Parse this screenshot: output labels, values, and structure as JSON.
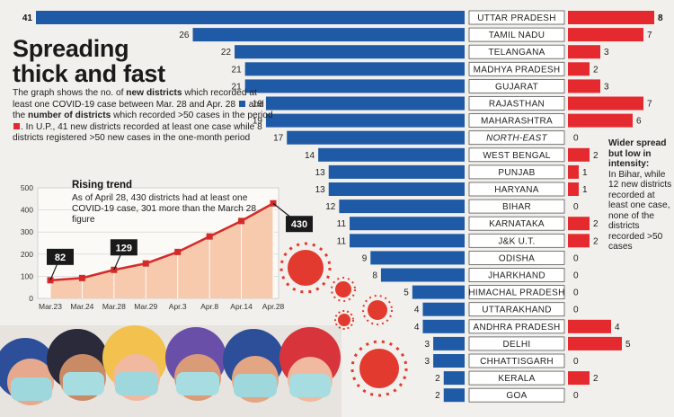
{
  "header": {
    "title_line1": "Spreading",
    "title_line2": "thick and fast"
  },
  "description": {
    "p1": "The graph shows the no. of ",
    "b1": "new districts",
    "p2": " which recorded at least one COVID-19 case between Mar. 28 and Apr. 28",
    "p3": " and the ",
    "b2": "number of districts",
    "p4": " which recorded >50 cases in the period",
    "p5": ". In U.P., 41 new districts recorded at least one case while 8 districts registered >50 new cases in the one-month period"
  },
  "rising": {
    "title": "Rising trend",
    "text": "As of April 28, 430 districts had at least one COVID-19 case, 301 more than the March 28 figure"
  },
  "side_note": {
    "head": "Wider spread but low in intensity:",
    "body": "In Bihar, while 12 new districts recorded at least one case, none of the districts recorded >50 cases"
  },
  "colors": {
    "blue_bar": "#1f5aa6",
    "red_bar": "#e52a2f",
    "line": "#d42a2a",
    "area": "#f7c9ad",
    "background": "#f2f0ec",
    "label_box": "#1a1a1a"
  },
  "chart_data": [
    {
      "type": "bar",
      "title": "New districts with at least one case / districts with >50 cases (Mar. 28 – Apr. 28)",
      "categories": [
        "UTTAR PRADESH",
        "TAMIL NADU",
        "TELANGANA",
        "MADHYA PRADESH",
        "GUJARAT",
        "RAJASTHAN",
        "MAHARASHTRA",
        "NORTH-EAST",
        "WEST BENGAL",
        "PUNJAB",
        "HARYANA",
        "BIHAR",
        "KARNATAKA",
        "J&K U.T.",
        "ODISHA",
        "JHARKHAND",
        "HIMACHAL PRADESH",
        "UTTARAKHAND",
        "ANDHRA PRADESH",
        "DELHI",
        "CHHATTISGARH",
        "KERALA",
        "GOA"
      ],
      "italic_categories": [
        "NORTH-EAST"
      ],
      "series": [
        {
          "name": "New districts with at least one COVID-19 case",
          "color": "#1f5aa6",
          "values": [
            41,
            26,
            22,
            21,
            21,
            19,
            19,
            17,
            14,
            13,
            13,
            12,
            11,
            11,
            9,
            8,
            5,
            4,
            4,
            3,
            3,
            2,
            2
          ]
        },
        {
          "name": "Districts with >50 cases",
          "color": "#e52a2f",
          "values": [
            8,
            7,
            3,
            2,
            3,
            7,
            6,
            0,
            2,
            1,
            1,
            0,
            2,
            2,
            0,
            0,
            0,
            0,
            4,
            5,
            0,
            2,
            0
          ]
        }
      ],
      "xlim_blue": [
        0,
        41
      ],
      "xlim_red": [
        0,
        8
      ]
    },
    {
      "type": "area",
      "title": "Rising trend",
      "x": [
        "Mar.23",
        "Mar.24",
        "Mar.28",
        "Mar.29",
        "Apr.3",
        "Apr.8",
        "Apr.14",
        "Apr.28"
      ],
      "values": [
        82,
        92,
        129,
        158,
        210,
        280,
        350,
        430
      ],
      "labeled_points": [
        0,
        2,
        7
      ],
      "y_ticks": [
        0,
        100,
        200,
        300,
        400,
        500
      ],
      "ylim": [
        0,
        500
      ],
      "grid": true
    }
  ]
}
